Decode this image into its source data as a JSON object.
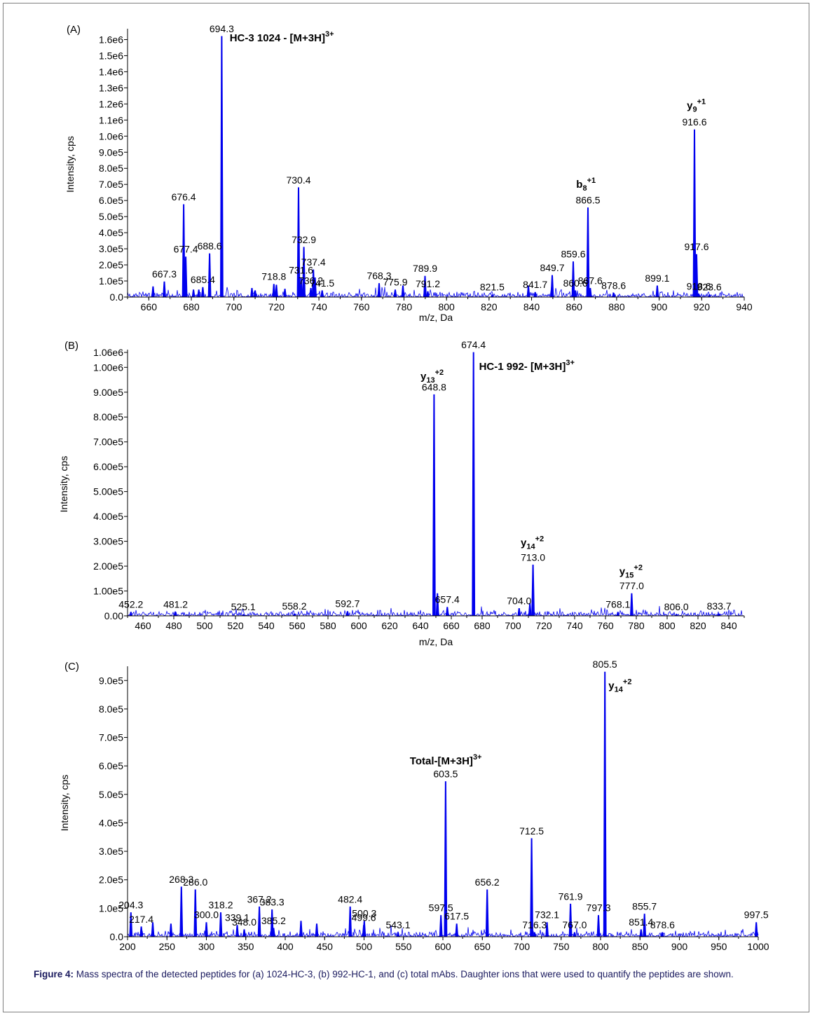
{
  "figure": {
    "caption_label": "Figure 4:",
    "caption_text": " Mass spectra of the detected peptides for (a) 1024-HC-3, (b) 992-HC-1, and (c) total mAbs. Daughter ions that were used to quantify the peptides are shown."
  },
  "colors": {
    "trace": "#0000ee",
    "axis": "#000000",
    "text": "#000000"
  },
  "chart_data": [
    {
      "type": "line",
      "panel_label": "(A)",
      "xlabel": "m/z, Da",
      "ylabel": "Intensity, cps",
      "xlim": [
        650,
        940
      ],
      "ylim": [
        0,
        1650000
      ],
      "xticks": [
        660,
        680,
        700,
        720,
        740,
        760,
        780,
        800,
        820,
        840,
        860,
        880,
        900,
        920,
        940
      ],
      "yticks": [
        0,
        100000,
        200000,
        300000,
        400000,
        500000,
        600000,
        700000,
        800000,
        900000,
        1000000,
        1100000,
        1200000,
        1300000,
        1400000,
        1500000,
        1600000
      ],
      "ytick_labels": [
        "0.0",
        "1.0e5",
        "2.0e5",
        "3.0e5",
        "4.0e5",
        "5.0e5",
        "6.0e5",
        "7.0e5",
        "8.0e5",
        "9.0e5",
        "1.0e6",
        "1.1e6",
        "1.2e6",
        "1.3e6",
        "1.4e6",
        "1.5e6",
        "1.6e6"
      ],
      "peaks": [
        {
          "x": 662.0,
          "y": 65000
        },
        {
          "x": 667.3,
          "y": 95000,
          "label": "667.3"
        },
        {
          "x": 676.4,
          "y": 575000,
          "label": "676.4"
        },
        {
          "x": 677.4,
          "y": 250000,
          "label": "677.4"
        },
        {
          "x": 681.0,
          "y": 45000
        },
        {
          "x": 683.5,
          "y": 45000
        },
        {
          "x": 685.4,
          "y": 60000,
          "label": "685.4"
        },
        {
          "x": 688.6,
          "y": 270000,
          "label": "688.6"
        },
        {
          "x": 694.3,
          "y": 1620000,
          "label": "694.3"
        },
        {
          "x": 708.5,
          "y": 55000
        },
        {
          "x": 710.0,
          "y": 40000
        },
        {
          "x": 718.8,
          "y": 80000,
          "label": "718.8"
        },
        {
          "x": 720.0,
          "y": 75000
        },
        {
          "x": 724.0,
          "y": 50000
        },
        {
          "x": 730.4,
          "y": 680000,
          "label": "730.4"
        },
        {
          "x": 731.6,
          "y": 120000,
          "label": "731.6"
        },
        {
          "x": 732.9,
          "y": 310000,
          "label": "732.9"
        },
        {
          "x": 736.2,
          "y": 55000,
          "label": "736.2"
        },
        {
          "x": 737.4,
          "y": 170000,
          "label": "737.4"
        },
        {
          "x": 738.2,
          "y": 120000
        },
        {
          "x": 741.5,
          "y": 40000,
          "label": "741.5"
        },
        {
          "x": 768.3,
          "y": 85000,
          "label": "768.3"
        },
        {
          "x": 775.9,
          "y": 45000,
          "label": "775.9"
        },
        {
          "x": 779.5,
          "y": 70000
        },
        {
          "x": 789.9,
          "y": 130000,
          "label": "789.9"
        },
        {
          "x": 791.2,
          "y": 35000,
          "label": "791.2"
        },
        {
          "x": 821.5,
          "y": 15000,
          "label": "821.5"
        },
        {
          "x": 838.5,
          "y": 70000
        },
        {
          "x": 841.7,
          "y": 30000,
          "label": "841.7"
        },
        {
          "x": 849.7,
          "y": 135000,
          "label": "849.7"
        },
        {
          "x": 859.6,
          "y": 220000,
          "label": "859.6"
        },
        {
          "x": 860.6,
          "y": 40000,
          "label": "860.6"
        },
        {
          "x": 866.5,
          "y": 555000,
          "label": "866.5"
        },
        {
          "x": 867.6,
          "y": 55000,
          "label": "867.6"
        },
        {
          "x": 878.6,
          "y": 25000,
          "label": "878.6"
        },
        {
          "x": 899.1,
          "y": 70000,
          "label": "899.1"
        },
        {
          "x": 916.6,
          "y": 1040000,
          "label": "916.6"
        },
        {
          "x": 917.6,
          "y": 265000,
          "label": "917.6"
        },
        {
          "x": 918.6,
          "y": 20000,
          "label": "918.6"
        },
        {
          "x": 923.6,
          "y": 15000,
          "label": "923.6"
        }
      ],
      "annotations": [
        {
          "text": "HC-3 1024 - [M+3H]",
          "sup": "3+",
          "x": 698,
          "y": 1590000
        },
        {
          "text": "b",
          "sub": "8",
          "sup": "+1",
          "x": 861,
          "y": 680000
        },
        {
          "text": "y",
          "sub": "9",
          "sup": "+1",
          "x": 913,
          "y": 1170000
        }
      ]
    },
    {
      "type": "line",
      "panel_label": "(B)",
      "xlabel": "m/z, Da",
      "ylabel": "Intensity, cps",
      "xlim": [
        450,
        850
      ],
      "ylim": [
        0,
        1060000
      ],
      "xticks": [
        460,
        480,
        500,
        520,
        540,
        560,
        580,
        600,
        620,
        640,
        660,
        680,
        700,
        720,
        740,
        760,
        780,
        800,
        820,
        840
      ],
      "yticks": [
        0,
        100000,
        200000,
        300000,
        400000,
        500000,
        600000,
        700000,
        800000,
        900000,
        1000000,
        1060000
      ],
      "ytick_labels": [
        "0.00",
        "1.00e5",
        "2.00e5",
        "3.00e5",
        "4.00e5",
        "5.00e5",
        "6.00e5",
        "7.00e5",
        "8.00e5",
        "9.00e5",
        "1.00e6",
        "1.06e6"
      ],
      "peaks": [
        {
          "x": 452.2,
          "y": 15000,
          "label": "452.2"
        },
        {
          "x": 481.2,
          "y": 15000,
          "label": "481.2"
        },
        {
          "x": 525.1,
          "y": 6000,
          "label": "525.1"
        },
        {
          "x": 558.2,
          "y": 8000,
          "label": "558.2"
        },
        {
          "x": 592.7,
          "y": 18000,
          "label": "592.7"
        },
        {
          "x": 648.8,
          "y": 890000,
          "label": "648.8"
        },
        {
          "x": 651.0,
          "y": 90000
        },
        {
          "x": 657.4,
          "y": 35000,
          "label": "657.4"
        },
        {
          "x": 674.4,
          "y": 1060000,
          "label": "674.4"
        },
        {
          "x": 704.0,
          "y": 30000,
          "label": "704.0"
        },
        {
          "x": 711.0,
          "y": 50000
        },
        {
          "x": 713.0,
          "y": 205000,
          "label": "713.0"
        },
        {
          "x": 768.1,
          "y": 15000,
          "label": "768.1"
        },
        {
          "x": 777.0,
          "y": 90000,
          "label": "777.0"
        },
        {
          "x": 806.0,
          "y": 6000,
          "label": "806.0"
        },
        {
          "x": 833.7,
          "y": 8000,
          "label": "833.7"
        }
      ],
      "annotations": [
        {
          "text": "HC-1  992- [M+3H]",
          "sup": "3+",
          "x": 678,
          "y": 990000
        },
        {
          "text": "y",
          "sub": "13",
          "sup": "+2",
          "x": 640,
          "y": 950000
        },
        {
          "text": "y",
          "sub": "14",
          "sup": "+2",
          "x": 705,
          "y": 280000
        },
        {
          "text": "y",
          "sub": "15",
          "sup": "+2",
          "x": 769,
          "y": 165000
        }
      ]
    },
    {
      "type": "line",
      "panel_label": "(C)",
      "xlabel": "",
      "ylabel": "Intensity, cps",
      "xlim": [
        200,
        1000
      ],
      "ylim": [
        0,
        940000
      ],
      "xticks": [
        200,
        250,
        300,
        350,
        400,
        450,
        500,
        550,
        600,
        650,
        700,
        750,
        800,
        850,
        900,
        950,
        1000
      ],
      "yticks": [
        0,
        100000,
        200000,
        300000,
        400000,
        500000,
        600000,
        700000,
        800000,
        900000
      ],
      "ytick_labels": [
        "0.0",
        "1.0e5",
        "2.0e5",
        "3.0e5",
        "4.0e5",
        "5.0e5",
        "6.0e5",
        "7.0e5",
        "8.0e5",
        "9.0e5"
      ],
      "peaks": [
        {
          "x": 204.3,
          "y": 85000,
          "label": "204.3"
        },
        {
          "x": 217.4,
          "y": 35000,
          "label": "217.4"
        },
        {
          "x": 232.0,
          "y": 50000
        },
        {
          "x": 255.0,
          "y": 45000
        },
        {
          "x": 268.3,
          "y": 175000,
          "label": "268.3"
        },
        {
          "x": 286.0,
          "y": 165000,
          "label": "286.0"
        },
        {
          "x": 300.0,
          "y": 50000,
          "label": "300.0"
        },
        {
          "x": 318.2,
          "y": 85000,
          "label": "318.2"
        },
        {
          "x": 339.1,
          "y": 40000,
          "label": "339.1"
        },
        {
          "x": 348.0,
          "y": 25000,
          "label": "348.0"
        },
        {
          "x": 367.2,
          "y": 105000,
          "label": "367.2"
        },
        {
          "x": 383.3,
          "y": 95000,
          "label": "383.3"
        },
        {
          "x": 385.2,
          "y": 30000,
          "label": "385.2"
        },
        {
          "x": 420.0,
          "y": 55000
        },
        {
          "x": 440.0,
          "y": 45000
        },
        {
          "x": 482.4,
          "y": 105000,
          "label": "482.4"
        },
        {
          "x": 500.3,
          "y": 55000,
          "label": "500.3"
        },
        {
          "x": 499.6,
          "y": 40000,
          "label": "499.6"
        },
        {
          "x": 543.1,
          "y": 15000,
          "label": "543.1"
        },
        {
          "x": 597.5,
          "y": 75000,
          "label": "597.5"
        },
        {
          "x": 603.5,
          "y": 545000,
          "label": "603.5"
        },
        {
          "x": 617.5,
          "y": 45000,
          "label": "617.5"
        },
        {
          "x": 656.2,
          "y": 165000,
          "label": "656.2"
        },
        {
          "x": 712.5,
          "y": 345000,
          "label": "712.5"
        },
        {
          "x": 716.3,
          "y": 15000,
          "label": "716.3"
        },
        {
          "x": 732.1,
          "y": 50000,
          "label": "732.1"
        },
        {
          "x": 761.9,
          "y": 115000,
          "label": "761.9"
        },
        {
          "x": 767.0,
          "y": 15000,
          "label": "767.0"
        },
        {
          "x": 797.3,
          "y": 75000,
          "label": "797.3"
        },
        {
          "x": 805.5,
          "y": 930000,
          "label": "805.5"
        },
        {
          "x": 851.4,
          "y": 25000,
          "label": "851.4"
        },
        {
          "x": 855.7,
          "y": 80000,
          "label": "855.7"
        },
        {
          "x": 878.6,
          "y": 15000,
          "label": "878.6"
        },
        {
          "x": 997.5,
          "y": 50000,
          "label": "997.5"
        }
      ],
      "annotations": [
        {
          "text": "Total-[M+3H]",
          "sup": "3+",
          "x": 558,
          "y": 605000
        },
        {
          "text": "y",
          "sub": "14",
          "sup": "+2",
          "x": 810,
          "y": 870000
        }
      ]
    }
  ]
}
